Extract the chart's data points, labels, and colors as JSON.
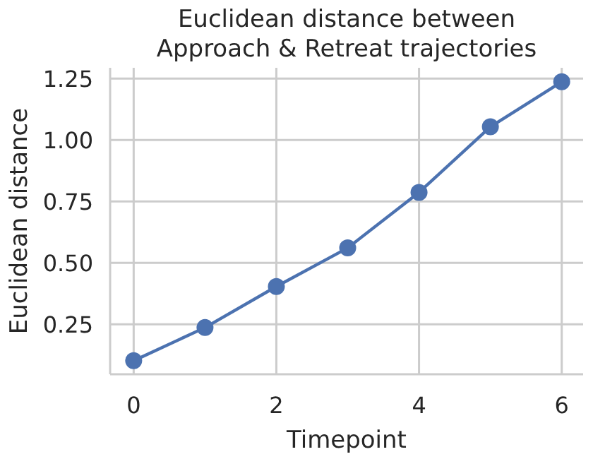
{
  "chart_data": {
    "type": "line",
    "title": "Euclidean distance between\nApproach & Retreat trajectories",
    "xlabel": "Timepoint",
    "ylabel": "Euclidean distance",
    "x": [
      0,
      1,
      2,
      3,
      4,
      5,
      6
    ],
    "series": [
      {
        "color": "#4c72b0",
        "values": [
          0.102,
          0.237,
          0.404,
          0.561,
          0.787,
          1.054,
          1.237
        ]
      }
    ],
    "xlim": [
      -0.33,
      6.3
    ],
    "xticks": [
      0,
      2,
      4,
      6
    ],
    "ylim": [
      0.047,
      1.294
    ],
    "yticks": [
      0.25,
      {
        "value": 0.5,
        "label": "0.50"
      },
      0.75,
      {
        "value": 1,
        "label": "1.00"
      },
      1.25
    ],
    "grid": true,
    "marker": "circle",
    "line_style": "solid"
  }
}
